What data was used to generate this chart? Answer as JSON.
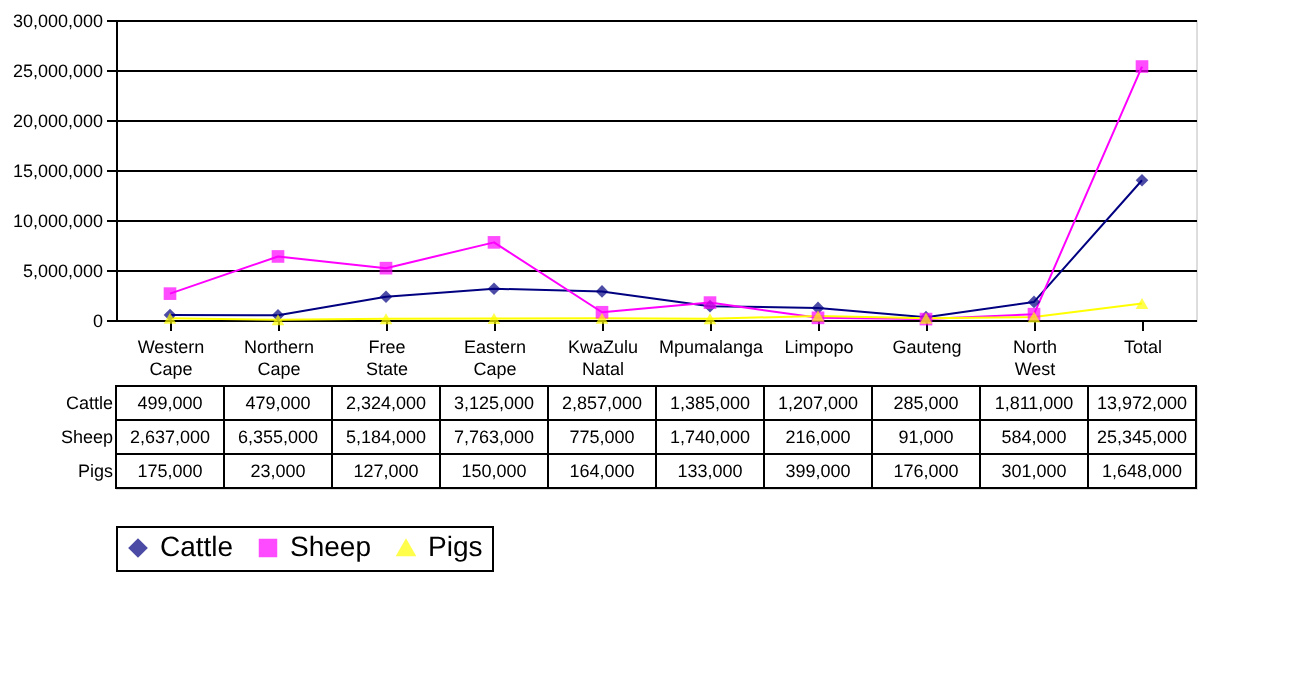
{
  "chart_data": {
    "type": "line",
    "categories": [
      "Western Cape",
      "Northern Cape",
      "Free State",
      "Eastern Cape",
      "KwaZulu Natal",
      "Mpumalanga",
      "Limpopo",
      "Gauteng",
      "North West",
      "Total"
    ],
    "series": [
      {
        "name": "Cattle",
        "color": "#000080",
        "marker": "diamond",
        "values": [
          499000,
          479000,
          2324000,
          3125000,
          2857000,
          1385000,
          1207000,
          285000,
          1811000,
          13972000
        ],
        "value_labels": [
          "499,000",
          "479,000",
          "2,324,000",
          "3,125,000",
          "2,857,000",
          "1,385,000",
          "1,207,000",
          "285,000",
          "1,811,000",
          "13,972,000"
        ]
      },
      {
        "name": "Sheep",
        "color": "#ff00ff",
        "marker": "square",
        "values": [
          2637000,
          6355000,
          5184000,
          7763000,
          775000,
          1740000,
          216000,
          91000,
          584000,
          25345000
        ],
        "value_labels": [
          "2,637,000",
          "6,355,000",
          "5,184,000",
          "7,763,000",
          "775,000",
          "1,740,000",
          "216,000",
          "91,000",
          "584,000",
          "25,345,000"
        ]
      },
      {
        "name": "Pigs",
        "color": "#ffff00",
        "marker": "triangle",
        "values": [
          175000,
          23000,
          127000,
          150000,
          164000,
          133000,
          399000,
          176000,
          301000,
          1648000
        ],
        "value_labels": [
          "175,000",
          "23,000",
          "127,000",
          "150,000",
          "164,000",
          "133,000",
          "399,000",
          "176,000",
          "301,000",
          "1,648,000"
        ]
      }
    ],
    "ylim": [
      0,
      30000000
    ],
    "yticks": [
      0,
      {
        "value": 5000000,
        "label": "5,000,000"
      },
      {
        "value": 10000000,
        "label": "10,000,000"
      },
      {
        "value": 15000000,
        "label": "15,000,000"
      },
      {
        "value": 20000000,
        "label": "20,000,000"
      },
      {
        "value": 25000000,
        "label": "25,000,000"
      },
      {
        "value": 30000000,
        "label": "30,000,000"
      }
    ],
    "grid": "y",
    "legend": "bottom"
  }
}
